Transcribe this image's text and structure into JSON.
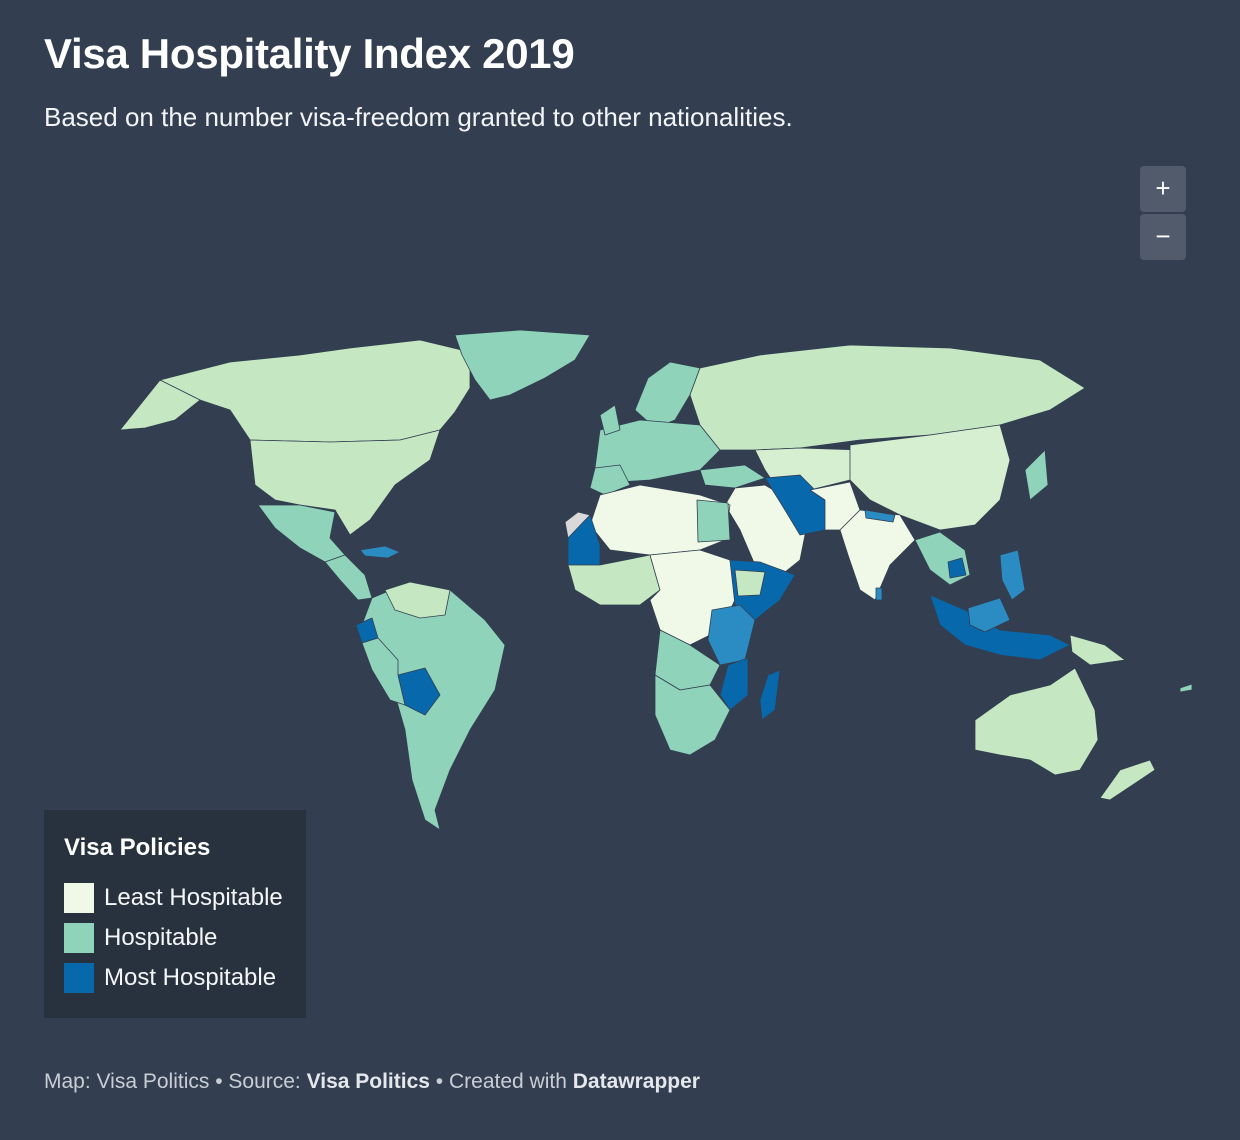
{
  "title": "Visa Hospitality Index 2019",
  "subtitle": "Based on the number visa-freedom granted to other nationalities.",
  "zoom": {
    "in_label": "+",
    "out_label": "−"
  },
  "legend": {
    "title": "Visa Policies",
    "items": [
      {
        "label": "Least Hospitable",
        "color": "#f0f9e8"
      },
      {
        "label": "Hospitable",
        "color": "#8fd3bb"
      },
      {
        "label": "Most Hospitable",
        "color": "#0868ac"
      }
    ]
  },
  "colors": {
    "least": "#f0f9e8",
    "light": "#d7efd1",
    "mid_light": "#c5e8c3",
    "hospitable": "#8fd3bb",
    "mid_blue": "#2b8cc4",
    "most": "#0868ac",
    "no_data": "#d9d9d9",
    "background": "#333f50"
  },
  "footer": {
    "map_prefix": "Map: ",
    "map_name": "Visa Politics",
    "sep1": " • ",
    "source_prefix": "Source: ",
    "source_name": "Visa Politics",
    "sep2": " • ",
    "created_prefix": "Created with ",
    "created_name": "Datawrapper"
  }
}
